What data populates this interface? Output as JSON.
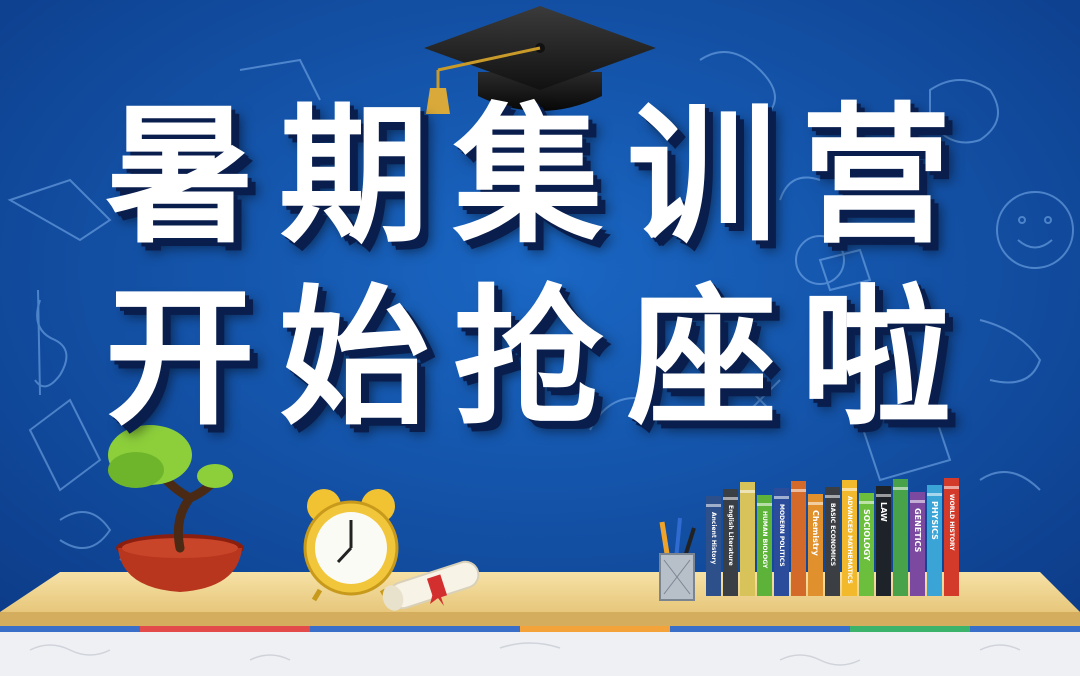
{
  "headline": {
    "line1": "暑期集训营",
    "line2": "开始抢座啦"
  },
  "colors": {
    "background": "#1156b0",
    "headline": "#ffffff",
    "headline_shadow": "#0a1e4d",
    "shelf": "#f2d99a"
  },
  "books": [
    {
      "label": "Ancient History",
      "color": "#2d4f8a"
    },
    {
      "label": "English Literature",
      "color": "#3a3f46"
    },
    {
      "label": "",
      "color": "#d8c25a"
    },
    {
      "label": "HUMAN BIOLOGY",
      "color": "#5db33a"
    },
    {
      "label": "MODERN POLITICS",
      "color": "#2b4c9a"
    },
    {
      "label": "",
      "color": "#d46a2a"
    },
    {
      "label": "Chemistry",
      "color": "#e0902c"
    },
    {
      "label": "BASIC ECONOMICS",
      "color": "#3b3f44"
    },
    {
      "label": "ADVANCED MATHEMATICS",
      "color": "#f2b92c"
    },
    {
      "label": "SOCIOLOGY",
      "color": "#6cbf3d"
    },
    {
      "label": "LAW",
      "color": "#1e2329"
    },
    {
      "label": "",
      "color": "#47a24a"
    },
    {
      "label": "GENETICS",
      "color": "#7b4aa0"
    },
    {
      "label": "PHYSICS",
      "color": "#3aa4d6"
    },
    {
      "label": "WORLD HISTORY",
      "color": "#d33a2a"
    }
  ],
  "icons": [
    "graduation-cap-icon",
    "bonsai-tree-icon",
    "alarm-clock-icon",
    "diploma-scroll-icon",
    "pencil-cup-icon"
  ]
}
